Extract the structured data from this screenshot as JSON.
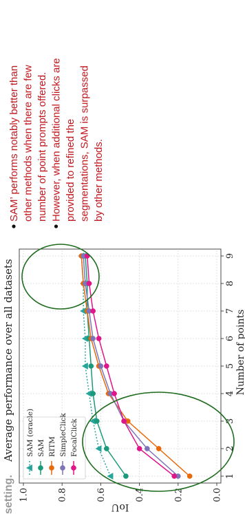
{
  "slide": {
    "cropped_title": "setting.",
    "bullets": [
      "SAM’ performs notably better than other methods when there are few number of point prompts offered.",
      "However, when additional clicks are provided to refined the segmentations, SAM is surpassed by other methods."
    ],
    "bullet_lines": [
      [
        "SAM’ performs notably better than",
        "other methods when there are few",
        "number of point prompts offered."
      ],
      [
        "However, when additional clicks are",
        "provided to refined the",
        "segmentations, SAM is surpassed",
        "by other methods."
      ]
    ],
    "bullet_color": "#c0181f",
    "highlight_color": "#1d6b1d"
  },
  "chart_data": {
    "type": "line",
    "title": "Average performance over all datasets",
    "xlabel": "Number of points",
    "ylabel": "IoU",
    "x": [
      1,
      2,
      3,
      4,
      5,
      6,
      7,
      8,
      9
    ],
    "xticks": [
      "1",
      "2",
      "3",
      "4",
      "5",
      "6",
      "7",
      "8",
      "9"
    ],
    "ylim": [
      0.0,
      1.0
    ],
    "yticks": [
      "0.0",
      "0.2",
      "0.4",
      "0.6",
      "0.8",
      "1.0"
    ],
    "grid": true,
    "legend_position": "top-left",
    "series": [
      {
        "name": "SAM (oracle)",
        "color": "#26a69a",
        "marker": "triangle",
        "dotted": true,
        "values": [
          0.55,
          0.61,
          0.64,
          0.66,
          0.68,
          0.68,
          0.69,
          0.69,
          0.7
        ]
      },
      {
        "name": "SAM",
        "color": "#1a9a7a",
        "marker": "circle",
        "dotted": false,
        "values": [
          0.47,
          0.57,
          0.62,
          0.64,
          0.65,
          0.66,
          0.67,
          0.67,
          0.68
        ]
      },
      {
        "name": "RITM",
        "color": "#e8690b",
        "marker": "circle",
        "dotted": false,
        "values": [
          0.14,
          0.3,
          0.46,
          0.56,
          0.61,
          0.65,
          0.67,
          0.69,
          0.7
        ]
      },
      {
        "name": "SimpleClick",
        "color": "#7d75b8",
        "marker": "circle",
        "dotted": false,
        "values": [
          0.2,
          0.36,
          0.48,
          0.55,
          0.6,
          0.64,
          0.66,
          0.68,
          0.69
        ]
      },
      {
        "name": "FocalClick",
        "color": "#e0158a",
        "marker": "circle",
        "dotted": false,
        "values": [
          0.22,
          0.4,
          0.48,
          0.53,
          0.57,
          0.61,
          0.64,
          0.66,
          0.67
        ]
      }
    ]
  }
}
